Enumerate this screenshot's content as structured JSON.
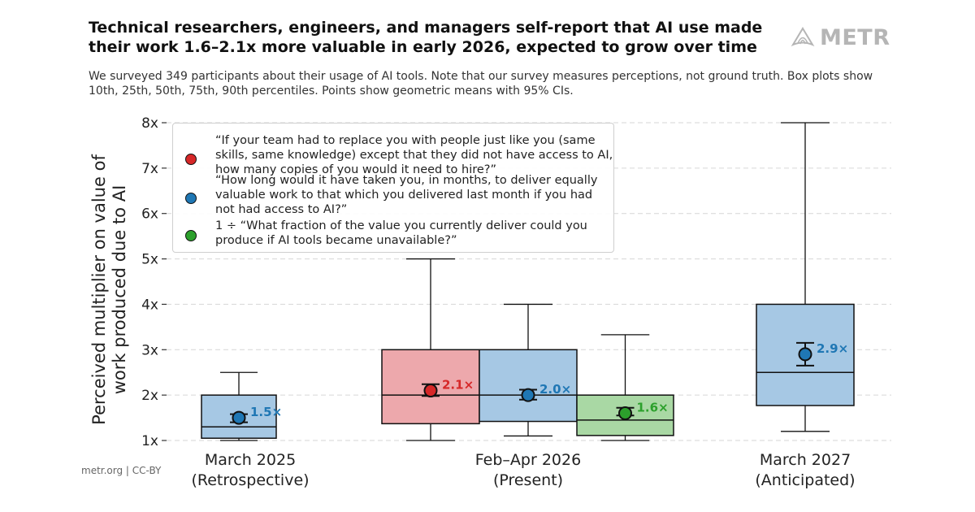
{
  "header": {
    "title": "Technical researchers, engineers, and managers self-report that AI use made their work 1.6–2.1x more valuable in early 2026, expected to grow over time",
    "subtitle": "We surveyed 349 participants about their usage of AI tools. Note that our survey measures perceptions, not ground truth. Box plots show 10th, 25th, 50th, 75th, 90th percentiles. Points show geometric means with 95% CIs.",
    "logo_text": "METR"
  },
  "footer": {
    "text": "metr.org  |  CC-BY"
  },
  "legend": [
    {
      "color": "#d62728",
      "text": "“If your team had to replace you with people just like you (same skills, same knowledge) except that they did not have access to AI, how many copies of you would it need to hire?”"
    },
    {
      "color": "#1f77b4",
      "text": "“How long would it have taken you, in months, to deliver equally valuable work to that which you delivered last month if you had not had access to AI?”"
    },
    {
      "color": "#2ca02c",
      "text": "1 ÷ “What fraction of the value you currently deliver could you produce if AI tools became unavailable?”"
    }
  ],
  "chart_data": {
    "type": "box",
    "ylabel": "Perceived multiplier on value of work produced due to AI",
    "ylim": [
      1,
      8
    ],
    "yticks": [
      "1x",
      "2x",
      "3x",
      "4x",
      "5x",
      "6x",
      "7x",
      "8x"
    ],
    "grid": "horizontal dashed",
    "legend_position": "top-left",
    "groups": [
      {
        "label_line1": "March 2025",
        "label_line2": "(Retrospective)"
      },
      {
        "label_line1": "Feb–Apr 2026",
        "label_line2": "(Present)"
      },
      {
        "label_line1": "March 2027",
        "label_line2": "(Anticipated)"
      }
    ],
    "boxes": [
      {
        "group": 0,
        "series": "copies",
        "p10": 1.0,
        "p25": 1.05,
        "p50": 1.3,
        "p75": 2.0,
        "p90": 2.5,
        "mean": 1.5,
        "ci": [
          1.4,
          1.58
        ],
        "label": "1.5×",
        "fill": "#a6c8e4",
        "color": "#1f77b4"
      },
      {
        "group": 1,
        "series": "hire",
        "p10": 1.0,
        "p25": 1.37,
        "p50": 2.0,
        "p75": 3.0,
        "p90": 5.0,
        "mean": 2.1,
        "ci": [
          1.98,
          2.24
        ],
        "label": "2.1×",
        "fill": "#eda8ac",
        "color": "#d62728"
      },
      {
        "group": 1,
        "series": "months",
        "p10": 1.1,
        "p25": 1.42,
        "p50": 2.0,
        "p75": 3.0,
        "p90": 4.0,
        "mean": 2.0,
        "ci": [
          1.9,
          2.12
        ],
        "label": "2.0×",
        "fill": "#a6c8e4",
        "color": "#1f77b4"
      },
      {
        "group": 1,
        "series": "fraction",
        "p10": 1.0,
        "p25": 1.11,
        "p50": 1.45,
        "p75": 2.0,
        "p90": 3.33,
        "mean": 1.6,
        "ci": [
          1.55,
          1.72
        ],
        "label": "1.6×",
        "fill": "#a9d8a4",
        "color": "#2ca02c"
      },
      {
        "group": 2,
        "series": "months",
        "p10": 1.2,
        "p25": 1.77,
        "p50": 2.5,
        "p75": 4.0,
        "p90": 8.0,
        "mean": 2.9,
        "ci": [
          2.65,
          3.15
        ],
        "label": "2.9×",
        "fill": "#a6c8e4",
        "color": "#1f77b4"
      }
    ]
  }
}
